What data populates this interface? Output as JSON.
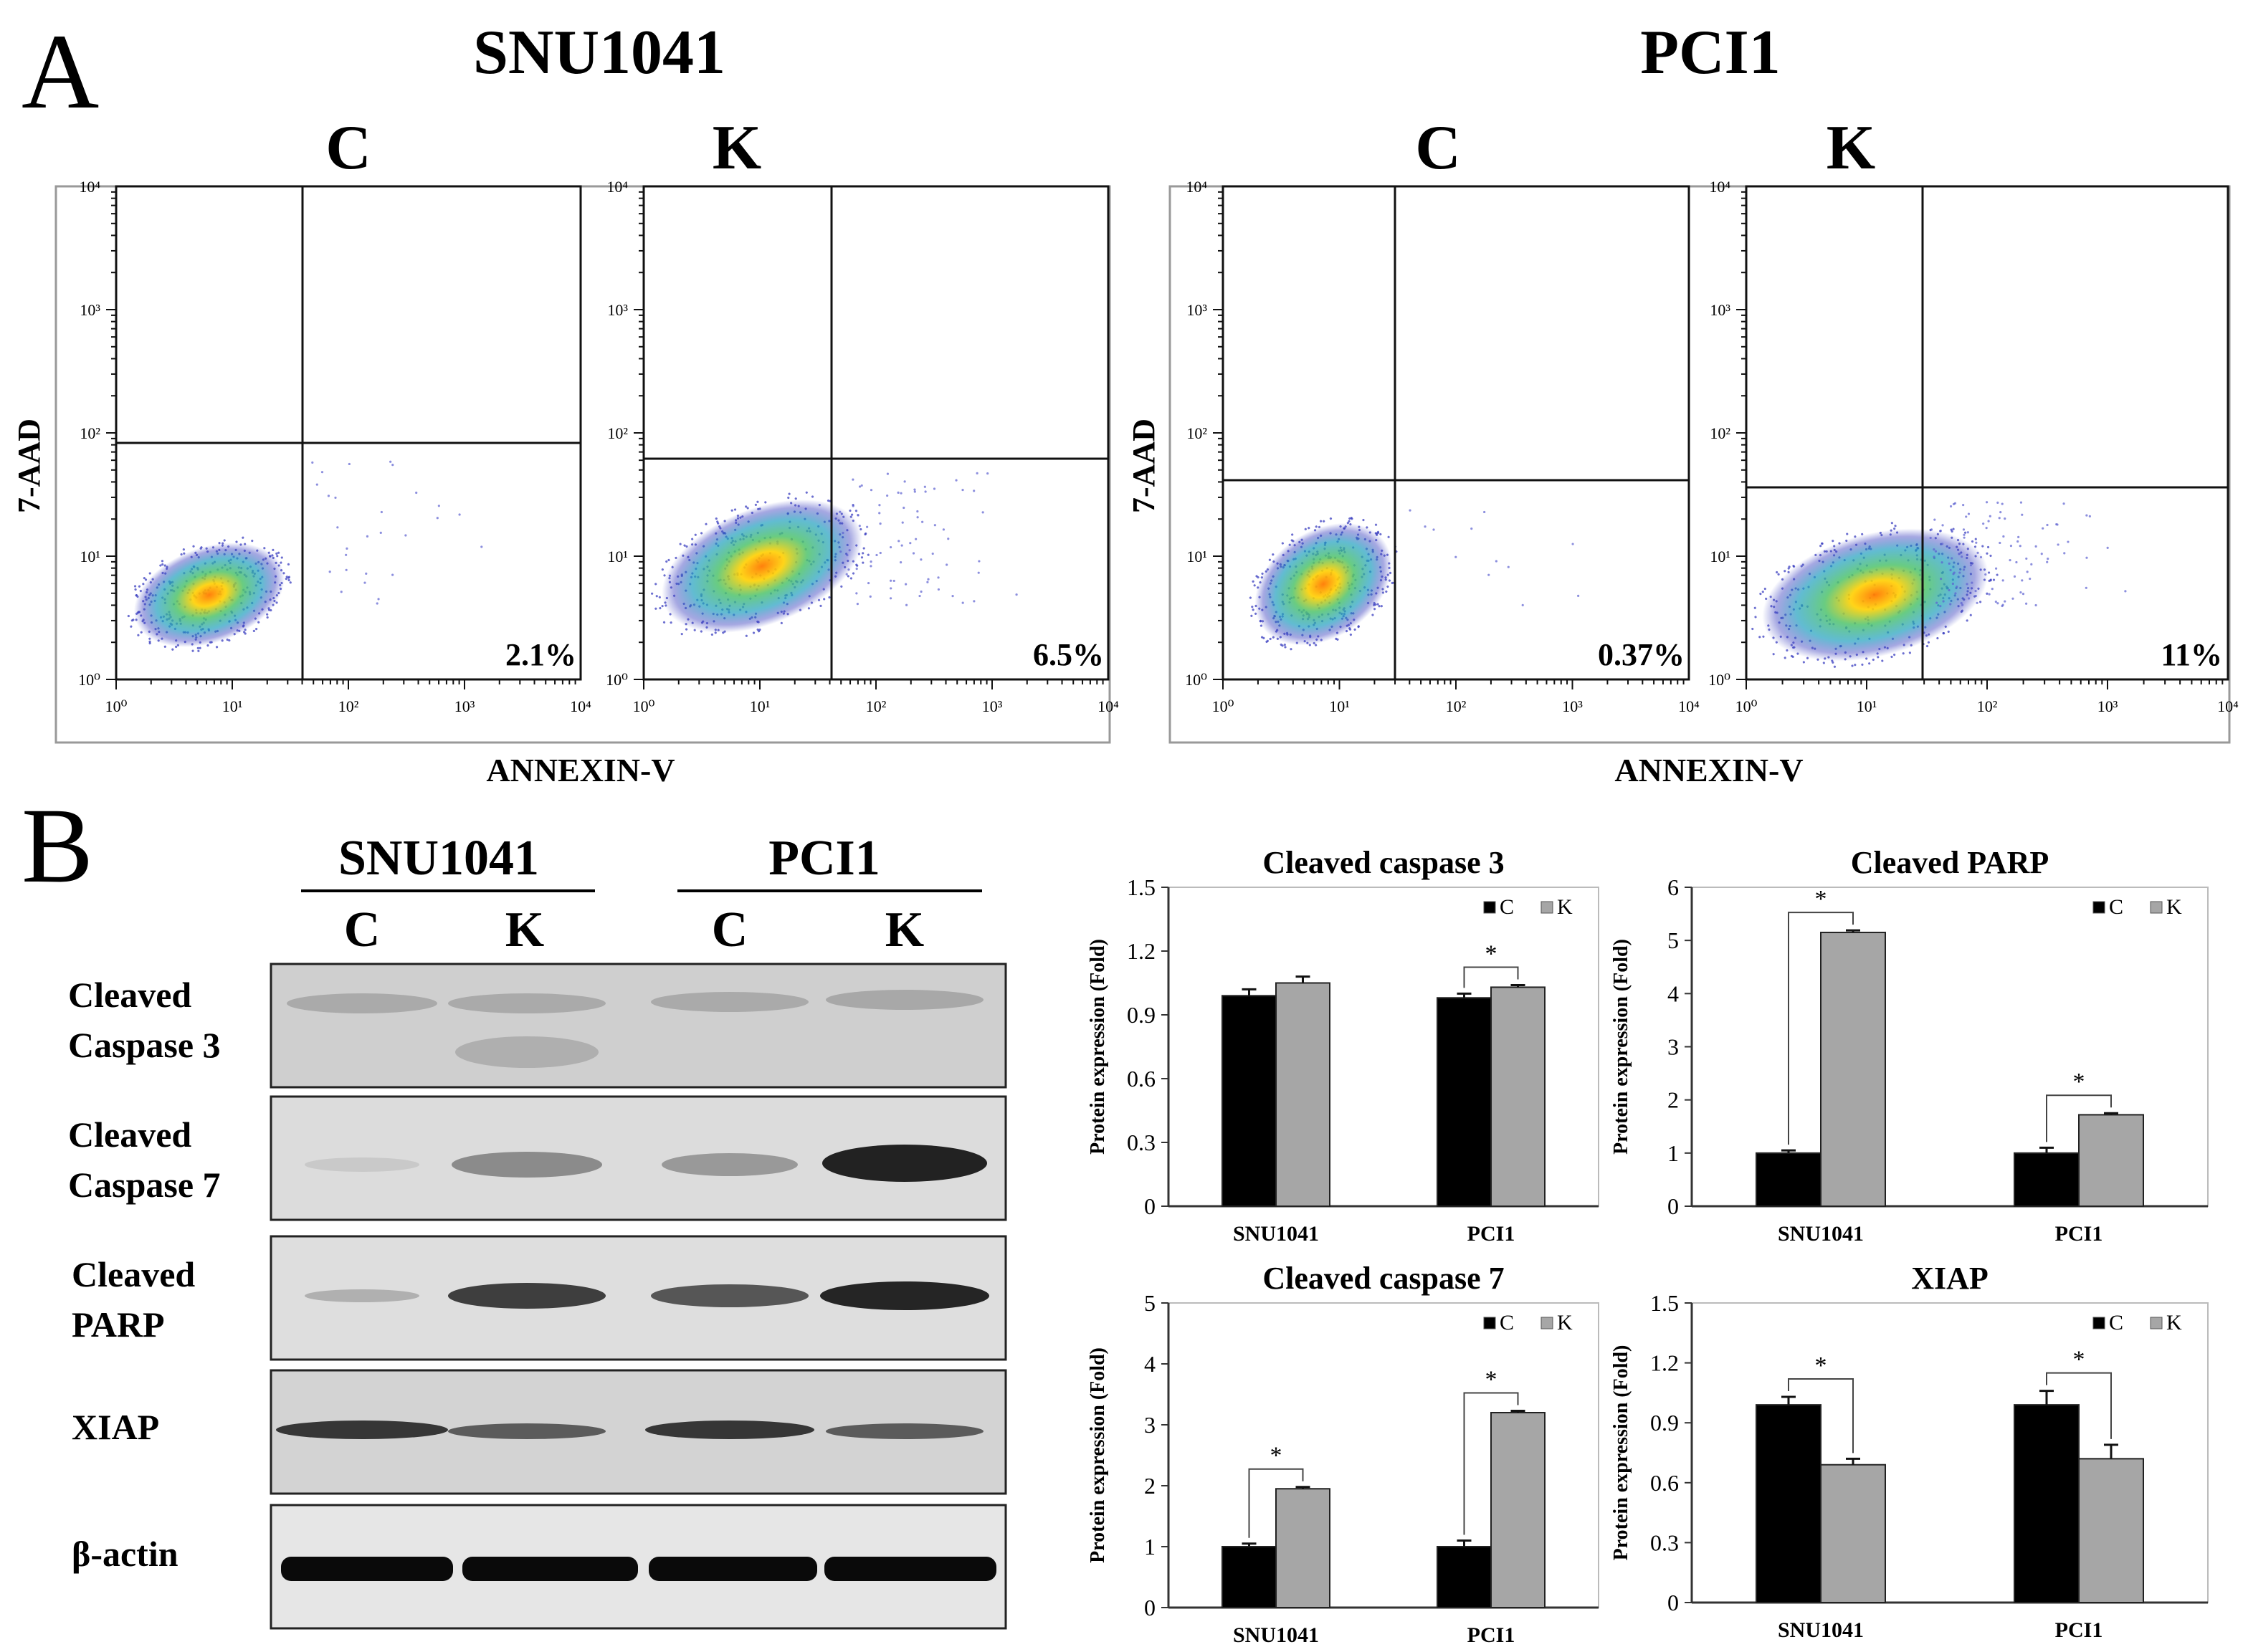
{
  "panel_a": {
    "letter": "A",
    "x_axis_label": "ANNEXIN-V",
    "y_axis_label": "7-AAD",
    "groups": [
      {
        "cell_line": "SNU1041",
        "plots": [
          {
            "condition": "C",
            "percent": "2.1%"
          },
          {
            "condition": "K",
            "percent": "6.5%"
          }
        ]
      },
      {
        "cell_line": "PCI1",
        "plots": [
          {
            "condition": "C",
            "percent": "0.37%"
          },
          {
            "condition": "K",
            "percent": "11%"
          }
        ]
      }
    ]
  },
  "panel_b": {
    "letter": "B",
    "blot": {
      "cell_lines": [
        "SNU1041",
        "PCI1"
      ],
      "lanes": [
        "C",
        "K",
        "C",
        "K"
      ],
      "rows": [
        {
          "label_lines": [
            "Cleaved",
            "Caspase 3"
          ]
        },
        {
          "label_lines": [
            "Cleaved",
            "Caspase 7"
          ]
        },
        {
          "label_lines": [
            "Cleaved",
            "PARP"
          ]
        },
        {
          "label_lines": [
            "XIAP"
          ]
        },
        {
          "label_lines": [
            "β-actin"
          ]
        }
      ]
    }
  },
  "chart_data": [
    {
      "type": "bar",
      "title": "Cleaved caspase 3",
      "categories": [
        "SNU1041",
        "PCI1"
      ],
      "series": [
        {
          "name": "C",
          "values": [
            0.99,
            0.98
          ],
          "errors": [
            0.03,
            0.02
          ],
          "color": "#000000"
        },
        {
          "name": "K",
          "values": [
            1.05,
            1.03
          ],
          "errors": [
            0.03,
            0.01
          ],
          "color": "#a6a6a6"
        }
      ],
      "ylabel": "Protein expression (Fold)",
      "ylim": [
        0,
        1.5
      ],
      "yticks": [
        "0",
        "0.3",
        "0.6",
        "0.9",
        "1.2",
        "1.5"
      ],
      "significance": [
        false,
        true
      ],
      "sig_mark": "*"
    },
    {
      "type": "bar",
      "title": "Cleaved PARP",
      "categories": [
        "SNU1041",
        "PCI1"
      ],
      "series": [
        {
          "name": "C",
          "values": [
            1.0,
            1.0
          ],
          "errors": [
            0.05,
            0.1
          ],
          "color": "#000000"
        },
        {
          "name": "K",
          "values": [
            5.15,
            1.72
          ],
          "errors": [
            0.04,
            0.03
          ],
          "color": "#a6a6a6"
        }
      ],
      "ylabel": "Protein expression (Fold)",
      "ylim": [
        0,
        6
      ],
      "yticks": [
        "0",
        "1",
        "2",
        "3",
        "4",
        "5",
        "6"
      ],
      "significance": [
        true,
        true
      ],
      "sig_mark": "*"
    },
    {
      "type": "bar",
      "title": "Cleaved caspase 7",
      "categories": [
        "SNU1041",
        "PCI1"
      ],
      "series": [
        {
          "name": "C",
          "values": [
            1.0,
            1.0
          ],
          "errors": [
            0.05,
            0.1
          ],
          "color": "#000000"
        },
        {
          "name": "K",
          "values": [
            1.95,
            3.2
          ],
          "errors": [
            0.03,
            0.03
          ],
          "color": "#a6a6a6"
        }
      ],
      "ylabel": "Protein expression (Fold)",
      "ylim": [
        0,
        5
      ],
      "yticks": [
        "0",
        "1",
        "2",
        "3",
        "4",
        "5"
      ],
      "significance": [
        true,
        true
      ],
      "sig_mark": "*"
    },
    {
      "type": "bar",
      "title": "XIAP",
      "categories": [
        "SNU1041",
        "PCI1"
      ],
      "series": [
        {
          "name": "C",
          "values": [
            0.99,
            0.99
          ],
          "errors": [
            0.04,
            0.07
          ],
          "color": "#000000"
        },
        {
          "name": "K",
          "values": [
            0.69,
            0.72
          ],
          "errors": [
            0.03,
            0.07
          ],
          "color": "#a6a6a6"
        }
      ],
      "ylabel": "Protein expression (Fold)",
      "ylim": [
        0,
        1.5
      ],
      "yticks": [
        "0",
        "0.3",
        "0.6",
        "0.9",
        "1.2",
        "1.5"
      ],
      "significance": [
        true,
        true
      ],
      "sig_mark": "*"
    }
  ]
}
